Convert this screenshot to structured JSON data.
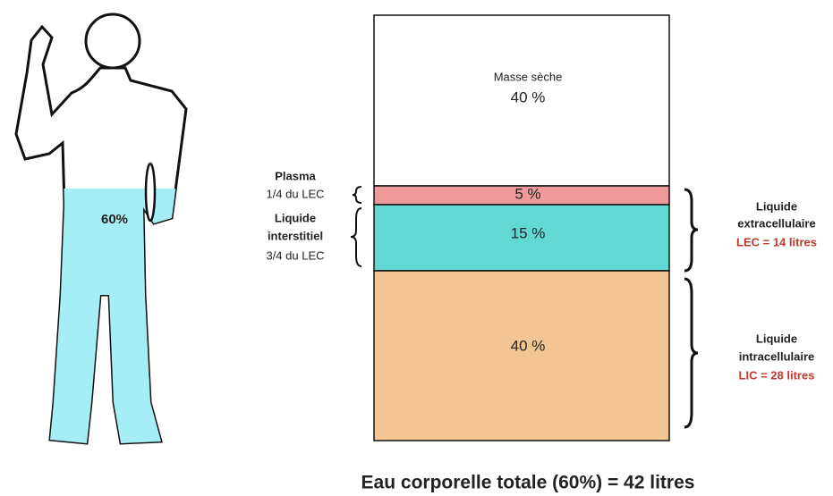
{
  "figure": {
    "label": "60%"
  },
  "bar": {
    "segments": [
      {
        "name": "Masse sèche",
        "label": "40 %"
      },
      {
        "label": "5 %"
      },
      {
        "label": "15 %"
      },
      {
        "label": "40 %"
      }
    ]
  },
  "left_labels": [
    {
      "title": [
        "Plasma"
      ],
      "note": "1/4 du LEC"
    },
    {
      "title": [
        "Liquide",
        "interstitiel"
      ],
      "note": "3/4 du LEC"
    }
  ],
  "right_labels": [
    {
      "lines": [
        "Liquide",
        "extracellulaire"
      ],
      "volume": "LEC = 14 litres"
    },
    {
      "lines": [
        "Liquide",
        "intracellulaire"
      ],
      "volume": "LIC = 28 litres"
    }
  ],
  "footer": "Eau corporelle totale (60%) = 42 litres"
}
